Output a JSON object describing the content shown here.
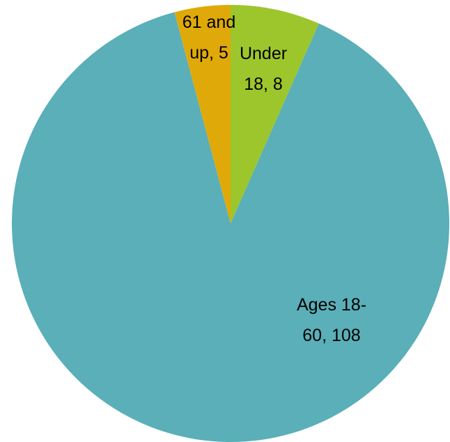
{
  "chart_data": {
    "type": "pie",
    "categories": [
      "Under 18",
      "Ages 18-60",
      "61 and up"
    ],
    "values": [
      8,
      108,
      5
    ],
    "data_labels": [
      "Under 18, 8",
      "Ages 18-60, 108",
      "61 and up, 5"
    ],
    "colors": [
      "#9dc62d",
      "#5aafb8",
      "#e0a90a"
    ]
  }
}
